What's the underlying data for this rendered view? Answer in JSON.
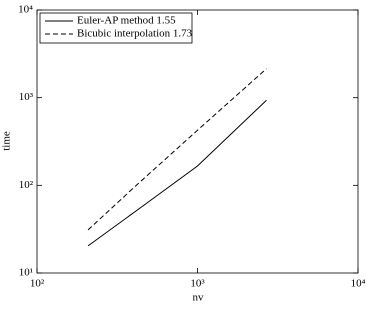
{
  "chart_data": {
    "type": "line",
    "xlabel": "nv",
    "ylabel": "time",
    "x": [
      208,
      408,
      1000,
      2690
    ],
    "series": [
      {
        "name": "Euler-AP method 1.55",
        "color": "#000000",
        "style": "solid",
        "values": [
          20.4,
          50,
          166,
          935
        ]
      },
      {
        "name": "Bicubic interpolation 1.73",
        "color": "#000000",
        "style": "dashed",
        "values": [
          31,
          97,
          425,
          2140
        ]
      }
    ],
    "xscale": "log",
    "yscale": "log",
    "xlim": [
      100,
      10000
    ],
    "ylim": [
      10,
      10000
    ],
    "xticks": [
      {
        "value": 100,
        "label": "10²"
      },
      {
        "value": 1000,
        "label": "10³"
      },
      {
        "value": 10000,
        "label": "10⁴"
      }
    ],
    "yticks": [
      {
        "value": 10,
        "label": "10¹"
      },
      {
        "value": 100,
        "label": "10²"
      },
      {
        "value": 1000,
        "label": "10³"
      },
      {
        "value": 10000,
        "label": "10⁴"
      }
    ],
    "legend": "upper-left"
  }
}
